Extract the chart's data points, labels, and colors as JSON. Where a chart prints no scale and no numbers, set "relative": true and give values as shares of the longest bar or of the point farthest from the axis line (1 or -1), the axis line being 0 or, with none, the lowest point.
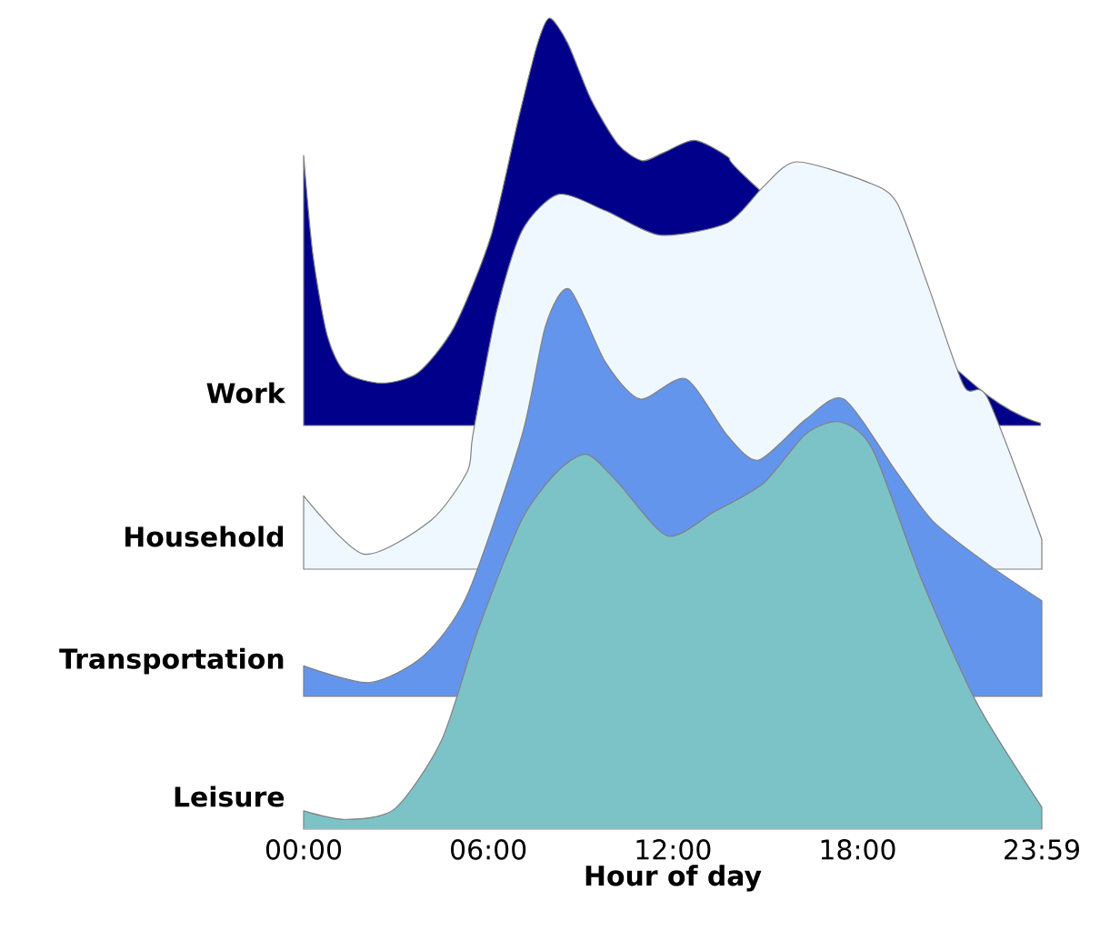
{
  "chart_data": [
    {
      "type": "area",
      "relative": true,
      "ylabel": "Work",
      "xlim": [
        0,
        23.983
      ],
      "tick_labels": false,
      "series": [
        {
          "color": "#00008b",
          "x": [
            0,
            0.3,
            0.77,
            1.36,
            2.54,
            3.72,
            4.9,
            6.09,
            6.97,
            7.57,
            7.98,
            8.57,
            9.34,
            10.22,
            11.0,
            11.7,
            12.7,
            13.77,
            14.5,
            16.13,
            17.9,
            19.68,
            21.87,
            23.94
          ],
          "values": [
            0.663,
            0.42,
            0.22,
            0.13,
            0.104,
            0.13,
            0.243,
            0.466,
            0.75,
            0.93,
            1.0,
            0.94,
            0.8,
            0.69,
            0.65,
            0.67,
            0.7,
            0.66,
            0.6,
            null,
            null,
            null,
            0.095,
            0.006
          ]
        }
      ]
    },
    {
      "type": "area",
      "relative": true,
      "ylabel": "Household",
      "xlim": [
        0,
        23.983
      ],
      "tick_labels": false,
      "series": [
        {
          "color": "#f0f8ff",
          "x": [
            0,
            1.95,
            4.14,
            5.32,
            5.5,
            6.26,
            7.09,
            8.27,
            9.81,
            11.58,
            13.77,
            14.95,
            16.02,
            18.32,
            19.27,
            20.27,
            21.45,
            22.22,
            23.983
          ],
          "values": [
            0.18,
            0.037,
            0.12,
            0.24,
            0.33,
            0.63,
            0.83,
            0.92,
            0.88,
            0.82,
            0.85,
            0.94,
            1.0,
            0.95,
            0.9,
            0.7,
            0.45,
            0.42,
            0.073
          ]
        }
      ]
    },
    {
      "type": "area",
      "relative": true,
      "ylabel": "Transportation",
      "xlim": [
        0,
        23.983
      ],
      "tick_labels": false,
      "series": [
        {
          "color": "#6495ed",
          "x": [
            0,
            2.13,
            3.9,
            5.32,
            7.09,
            7.86,
            8.63,
            9.81,
            10.93,
            12.41,
            13.77,
            14.78,
            16.31,
            17.55,
            19.27,
            20.45,
            22.22,
            23.983
          ],
          "values": [
            0.075,
            0.034,
            0.1,
            0.25,
            0.64,
            0.91,
            1.0,
            0.82,
            0.73,
            0.78,
            0.64,
            0.58,
            0.68,
            0.73,
            0.55,
            0.43,
            0.325,
            0.235
          ]
        }
      ]
    },
    {
      "type": "area",
      "relative": true,
      "ylabel": "Leisure",
      "xlabel": "Hour of day",
      "xlim": [
        0,
        23.983
      ],
      "tick_labels": "x",
      "xticks": [
        {
          "value": 0,
          "label": "00:00"
        },
        {
          "value": 6,
          "label": "06:00"
        },
        {
          "value": 12,
          "label": "12:00"
        },
        {
          "value": 18,
          "label": "18:00"
        },
        {
          "value": 23.983,
          "label": "23:59"
        }
      ],
      "series": [
        {
          "color": "#7cc3c8",
          "x": [
            0,
            1.36,
            2.96,
            4.49,
            5.67,
            7.09,
            8.27,
            9.22,
            10.22,
            11.82,
            13.36,
            14.95,
            16.31,
            17.43,
            18.5,
            20.09,
            21.87,
            23.983
          ],
          "values": [
            0.045,
            0.024,
            0.05,
            0.22,
            0.49,
            0.76,
            0.88,
            0.92,
            0.85,
            0.72,
            0.78,
            0.85,
            0.97,
            1.0,
            0.93,
            0.61,
            0.31,
            0.054
          ]
        }
      ]
    }
  ]
}
